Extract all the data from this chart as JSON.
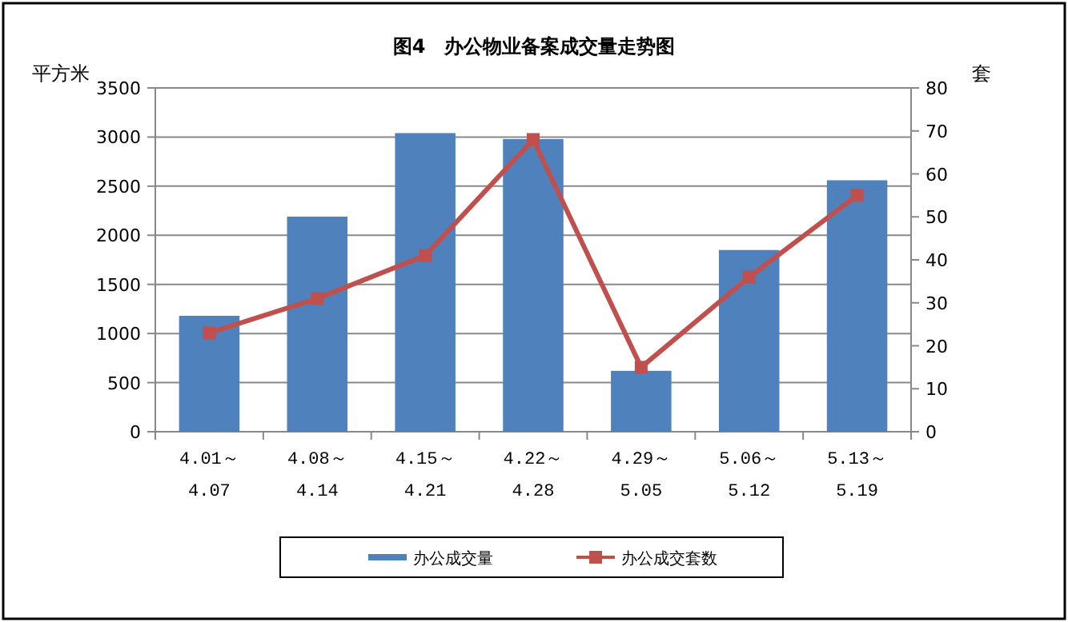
{
  "chart_data": {
    "type": "bar",
    "title": "图4　办公物业备案成交量走势图",
    "ylabel": "平方米",
    "y2label": "套",
    "categories": [
      "4.01～\n4.07",
      "4.08～\n4.14",
      "4.15～\n4.21",
      "4.22～\n4.28",
      "4.29～\n5.05",
      "5.06～\n5.12",
      "5.13～\n5.19"
    ],
    "series": [
      {
        "name": "办公成交量",
        "color": "#4f81bd",
        "values": [
          1180,
          2190,
          3040,
          2980,
          620,
          1850,
          2560
        ]
      },
      {
        "name": "办公成交套数",
        "type": "line",
        "axis": "y2",
        "color": "#c0504d",
        "marker": "square",
        "values": [
          23,
          31,
          41,
          68,
          15,
          36,
          55
        ]
      }
    ],
    "ylim": [
      0,
      3500
    ],
    "yticks": [
      0,
      500,
      1000,
      1500,
      2000,
      2500,
      3000,
      3500
    ],
    "y2lim": [
      0,
      80
    ],
    "y2ticks": [
      0,
      10,
      20,
      30,
      40,
      50,
      60,
      70,
      80
    ],
    "grid": "y",
    "legend": "bottom"
  }
}
